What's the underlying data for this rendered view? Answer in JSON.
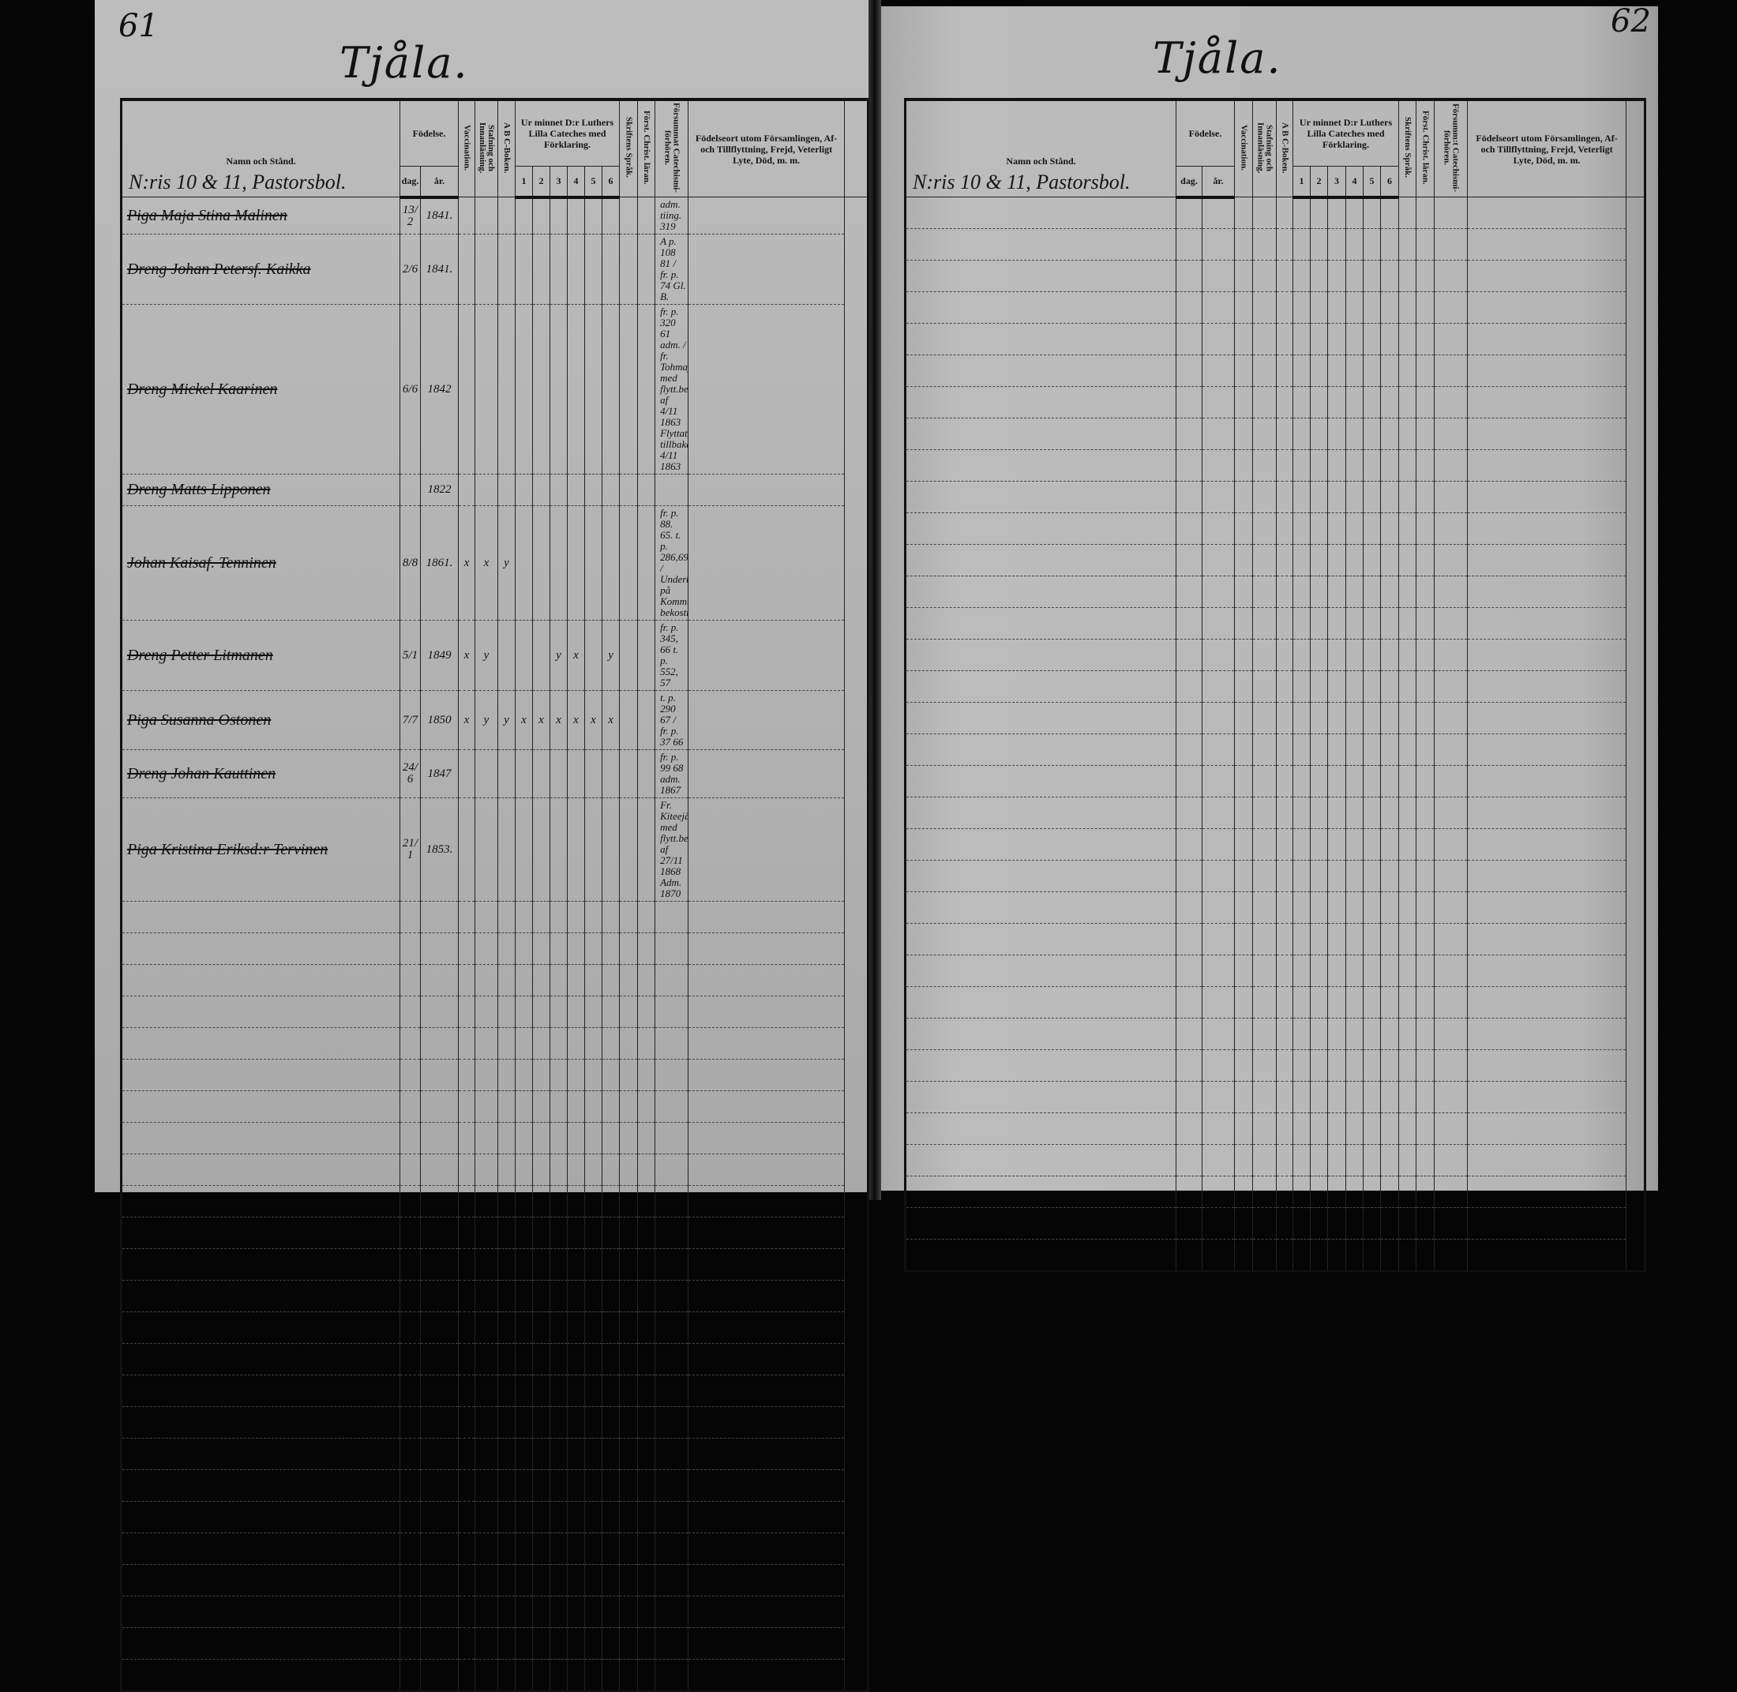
{
  "left_page": {
    "page_number": "61",
    "title": "Tjåla.",
    "house_heading": "N:ris 10 & 11, Pastorsbol.",
    "headers": {
      "name": "Namn och Stånd.",
      "birth": "Födelse.",
      "day": "dag.",
      "year": "år.",
      "vaccination": "Vaccination.",
      "spelling": "Stafning och Innanläsning.",
      "abc": "A B C-Boken.",
      "catechism": "Ur minnet D:r Luthers Lilla Cateches med Förklaring.",
      "catechism_parts": [
        "1",
        "2",
        "3",
        "4",
        "5",
        "6"
      ],
      "scripture": "Skriftens Språk.",
      "christian": "Först. Christ. läran.",
      "missed": "Försummat Catechismi-förhören.",
      "remarks": "Födelseort utom Församlingen, Af- och Tillflyttning, Frejd, Veterligt Lyte, Död, m. m."
    },
    "entries": [
      {
        "name": "Piga Maja Stina Malinen",
        "day": "13/2",
        "year": "1841.",
        "marks": [
          "",
          "",
          "",
          "",
          "",
          "",
          "",
          "",
          "",
          ""
        ],
        "remark": "adm. tiing. 319"
      },
      {
        "name": "Dreng Johan Petersf. Kaikka",
        "day": "2/6",
        "year": "1841.",
        "marks": [
          "",
          "",
          "",
          "",
          "",
          "",
          "",
          "",
          "",
          ""
        ],
        "remark": "A p. 108 81 / fr. p. 74 Gl. B."
      },
      {
        "name": "Dreng Mickel Kaarinen",
        "day": "6/6",
        "year": "1842",
        "marks": [
          "",
          "",
          "",
          "",
          "",
          "",
          "",
          "",
          "",
          ""
        ],
        "remark": "fr. p. 320 61 adm. / fr. Tohmajärvi med flytt.bet. af 4/11 1863 Flyttat tillbaka 4/11 1863"
      },
      {
        "name": "Dreng Matts Lipponen",
        "day": "",
        "year": "1822",
        "marks": [
          "",
          "",
          "",
          "",
          "",
          "",
          "",
          "",
          "",
          ""
        ],
        "remark": ""
      },
      {
        "name": "Johan Kaisaf. Tenninen",
        "day": "8/8",
        "year": "1861.",
        "marks": [
          "x",
          "x",
          "y",
          "",
          "",
          "",
          "",
          "",
          "",
          ""
        ],
        "remark": "fr. p. 88. 65. t. p. 286,69 / Underhålles på Kommunens bekostn."
      },
      {
        "name": "Dreng Petter Litmanen",
        "day": "5/1",
        "year": "1849",
        "marks": [
          "x",
          "y",
          "",
          "",
          "",
          "y",
          "x",
          "",
          "y"
        ],
        "remark": "fr. p. 345, 66 t. p. 552, 57"
      },
      {
        "name": "Piga Susanna Ostonen",
        "day": "7/7",
        "year": "1850",
        "marks": [
          "x",
          "y",
          "y",
          "x",
          "x",
          "x",
          "x",
          "x",
          "x"
        ],
        "remark": "t. p. 290 67 / fr. p. 37 66"
      },
      {
        "name": "Dreng Johan Kauttinen",
        "day": "24/6",
        "year": "1847",
        "marks": [
          "",
          "",
          "",
          "",
          "",
          "",
          "",
          "",
          "",
          ""
        ],
        "remark": "fr. p. 99 68 adm. 1867"
      },
      {
        "name": "Piga Kristina Eriksd:r Tervinen",
        "day": "21/1",
        "year": "1853.",
        "marks": [
          "",
          "",
          "",
          "",
          "",
          "",
          "",
          "",
          "",
          ""
        ],
        "remark": "Fr. Kiteejärvi med flytt.bet. af 27/11 1868 Adm. 1870"
      }
    ]
  },
  "right_page": {
    "page_number": "62",
    "title": "Tjåla.",
    "house_heading": "N:ris 10 & 11, Pastorsbol.",
    "headers": {
      "name": "Namn och Stånd.",
      "birth": "Födelse.",
      "day": "dag.",
      "year": "år.",
      "vaccination": "Vaccination.",
      "spelling": "Stafning och Innanläsning.",
      "abc": "A B C-Boken.",
      "catechism": "Ur minnet D:r Luthers Lilla Cateches med Förklaring.",
      "catechism_parts": [
        "1",
        "2",
        "3",
        "4",
        "5",
        "6"
      ],
      "scripture": "Skriftens Språk.",
      "christian": "Först. Christ. läran.",
      "missed": "Försumm:t Catechismi-förhören.",
      "remarks": "Födelseort utom Församlingen, Af- och Tillflyttning, Frejd, Veterligt Lyte, Död, m. m."
    },
    "entries": []
  },
  "colors": {
    "paper": "#b8b8b8",
    "ink": "#111111",
    "background": "#050505"
  }
}
